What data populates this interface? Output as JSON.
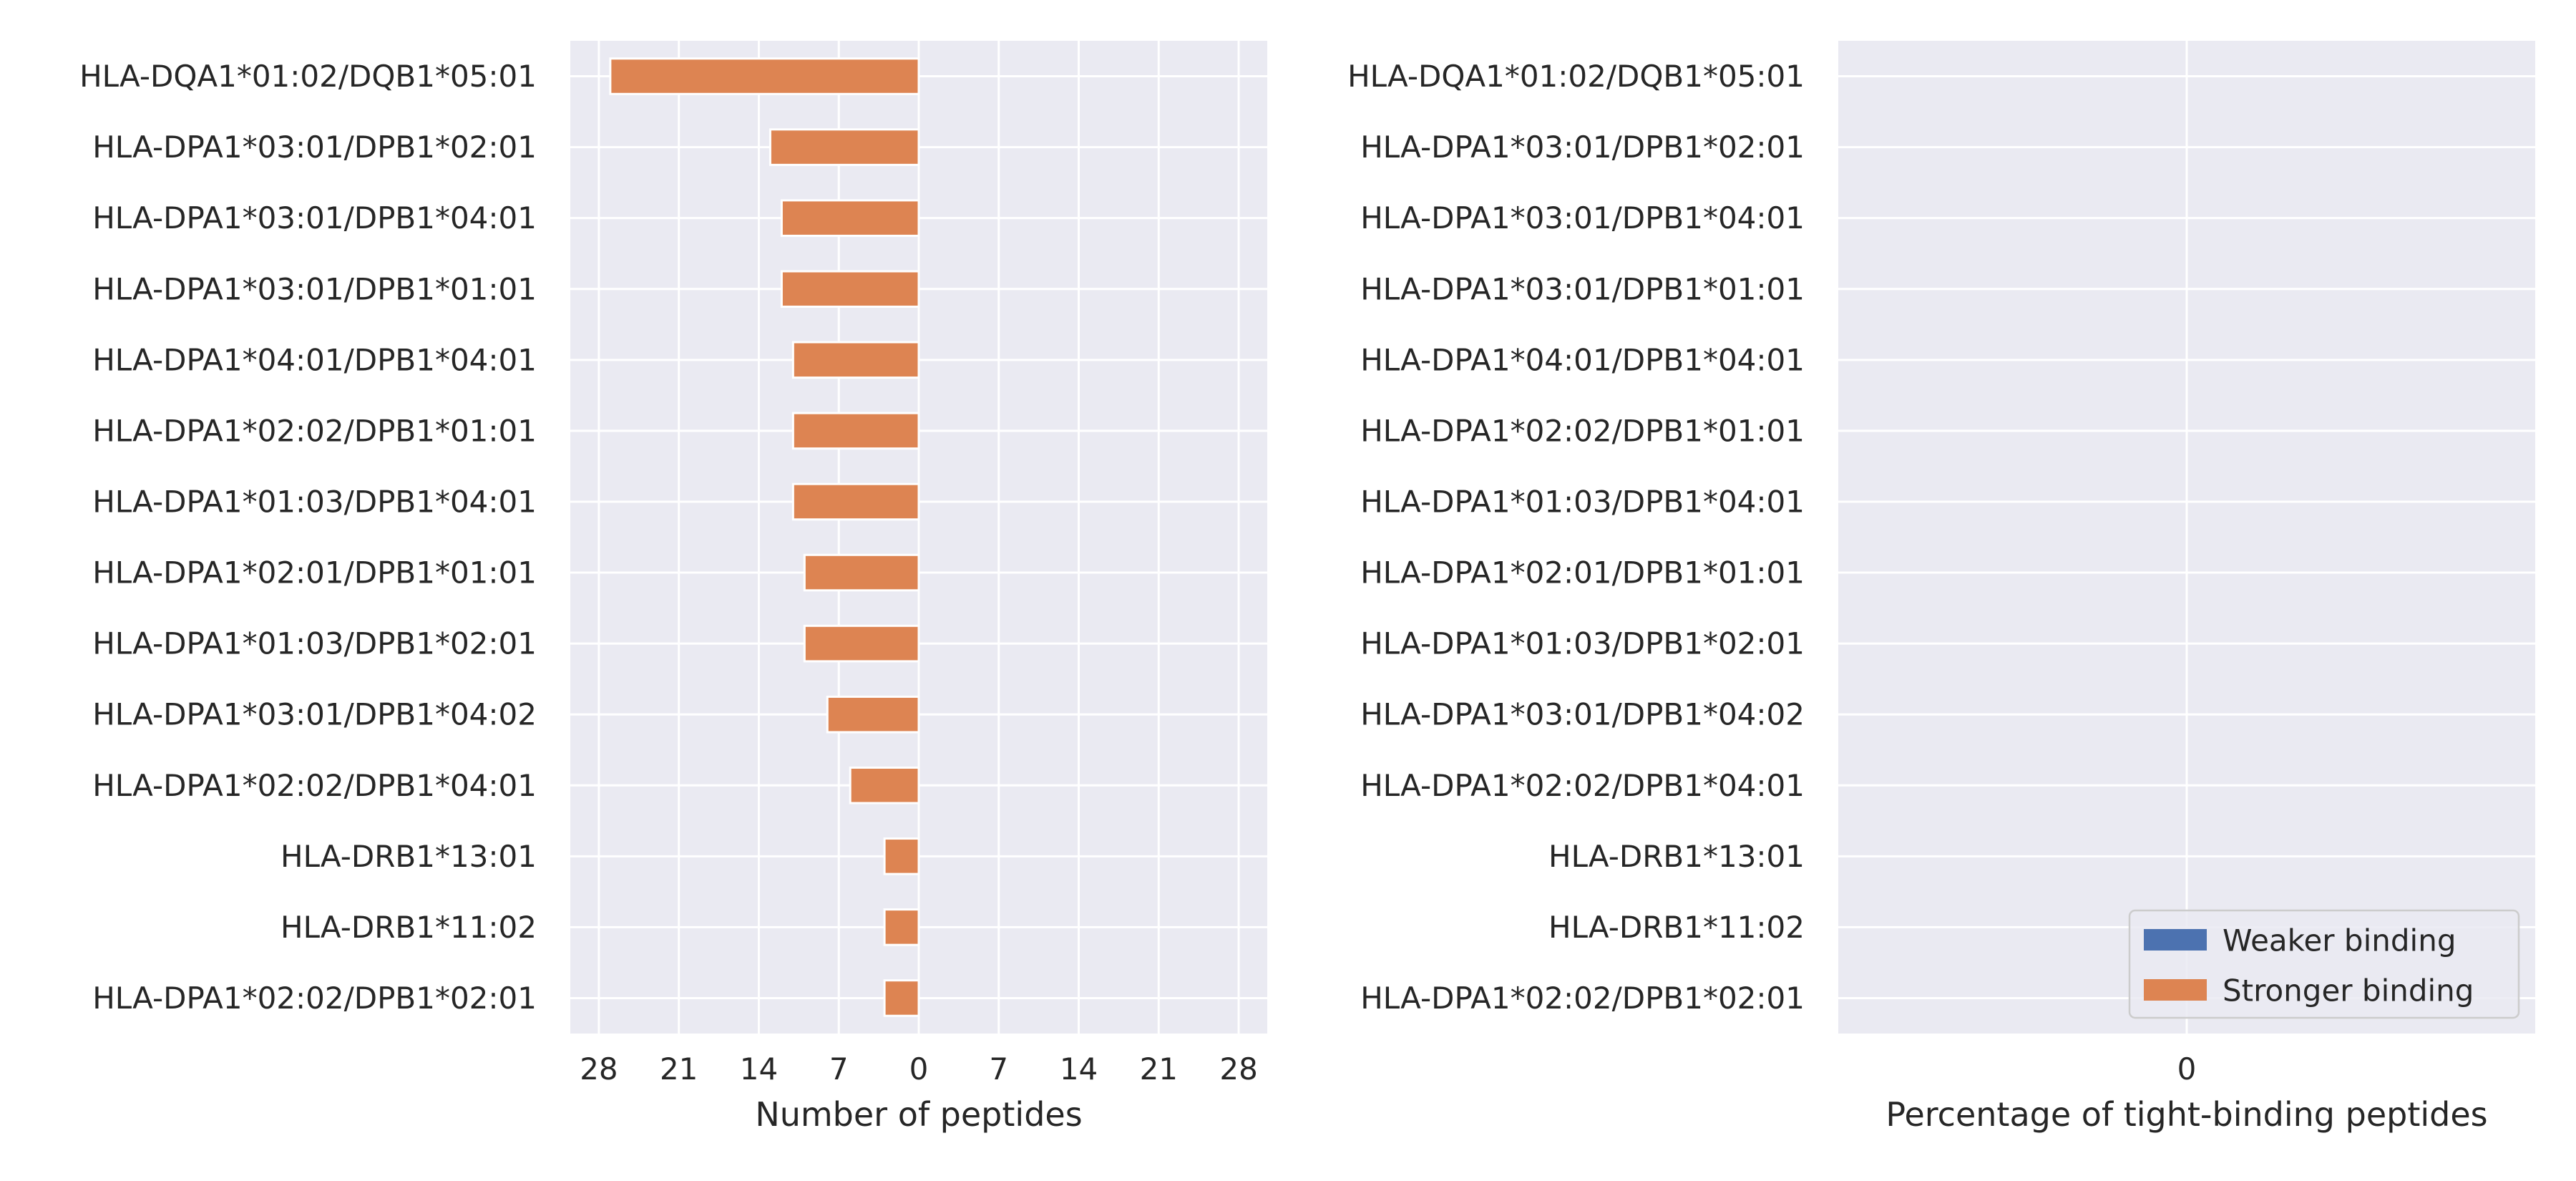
{
  "colors": {
    "panel_bg": "#eaeaf2",
    "grid": "#ffffff",
    "weaker": "#4c72b0",
    "stronger": "#dd8452",
    "text": "#262626"
  },
  "chart_data": [
    {
      "type": "bar",
      "orientation": "horizontal",
      "categories": [
        "HLA-DQA1*01:02/DQB1*05:01",
        "HLA-DPA1*03:01/DPB1*02:01",
        "HLA-DPA1*03:01/DPB1*04:01",
        "HLA-DPA1*03:01/DPB1*01:01",
        "HLA-DPA1*04:01/DPB1*04:01",
        "HLA-DPA1*02:02/DPB1*01:01",
        "HLA-DPA1*01:03/DPB1*04:01",
        "HLA-DPA1*02:01/DPB1*01:01",
        "HLA-DPA1*01:03/DPB1*02:01",
        "HLA-DPA1*03:01/DPB1*04:02",
        "HLA-DPA1*02:02/DPB1*04:01",
        "HLA-DRB1*13:01",
        "HLA-DRB1*11:02",
        "HLA-DPA1*02:02/DPB1*02:01"
      ],
      "series": [
        {
          "values": [
            0,
            0,
            0,
            0,
            0,
            0,
            0,
            0,
            0,
            0,
            0,
            0,
            0,
            0
          ]
        },
        {
          "values": [
            27,
            13,
            12,
            12,
            11,
            11,
            11,
            10,
            10,
            8,
            6,
            3,
            3,
            3
          ]
        }
      ],
      "xticks": [
        -28,
        -21,
        -14,
        -7,
        0,
        7,
        14,
        21,
        28
      ],
      "xtick_labels": [
        "28",
        "21",
        "14",
        "7",
        "0",
        "7",
        "14",
        "21",
        "28"
      ],
      "xlim": [
        -30.5,
        30.5
      ],
      "xlabel": "Number of peptides",
      "grid": true
    },
    {
      "type": "bar",
      "orientation": "horizontal",
      "categories": [
        "HLA-DQA1*01:02/DQB1*05:01",
        "HLA-DPA1*03:01/DPB1*02:01",
        "HLA-DPA1*03:01/DPB1*04:01",
        "HLA-DPA1*03:01/DPB1*01:01",
        "HLA-DPA1*04:01/DPB1*04:01",
        "HLA-DPA1*02:02/DPB1*01:01",
        "HLA-DPA1*01:03/DPB1*04:01",
        "HLA-DPA1*02:01/DPB1*01:01",
        "HLA-DPA1*01:03/DPB1*02:01",
        "HLA-DPA1*03:01/DPB1*04:02",
        "HLA-DPA1*02:02/DPB1*04:01",
        "HLA-DRB1*13:01",
        "HLA-DRB1*11:02",
        "HLA-DPA1*02:02/DPB1*02:01"
      ],
      "series": [
        {
          "name": "Weaker binding",
          "values": [
            0,
            0,
            0,
            0,
            0,
            0,
            0,
            0,
            0,
            0,
            0,
            0,
            0,
            0
          ]
        },
        {
          "name": "Stronger binding",
          "values": [
            0,
            0,
            0,
            0,
            0,
            0,
            0,
            0,
            0,
            0,
            0,
            0,
            0,
            0
          ]
        }
      ],
      "xticks": [
        0
      ],
      "xtick_labels": [
        "0"
      ],
      "xlim": [
        -1,
        1
      ],
      "xlabel": "Percentage of tight-binding peptides",
      "legend": {
        "placement": "lower-right",
        "entries": [
          "Weaker binding",
          "Stronger binding"
        ]
      },
      "grid": true
    }
  ]
}
